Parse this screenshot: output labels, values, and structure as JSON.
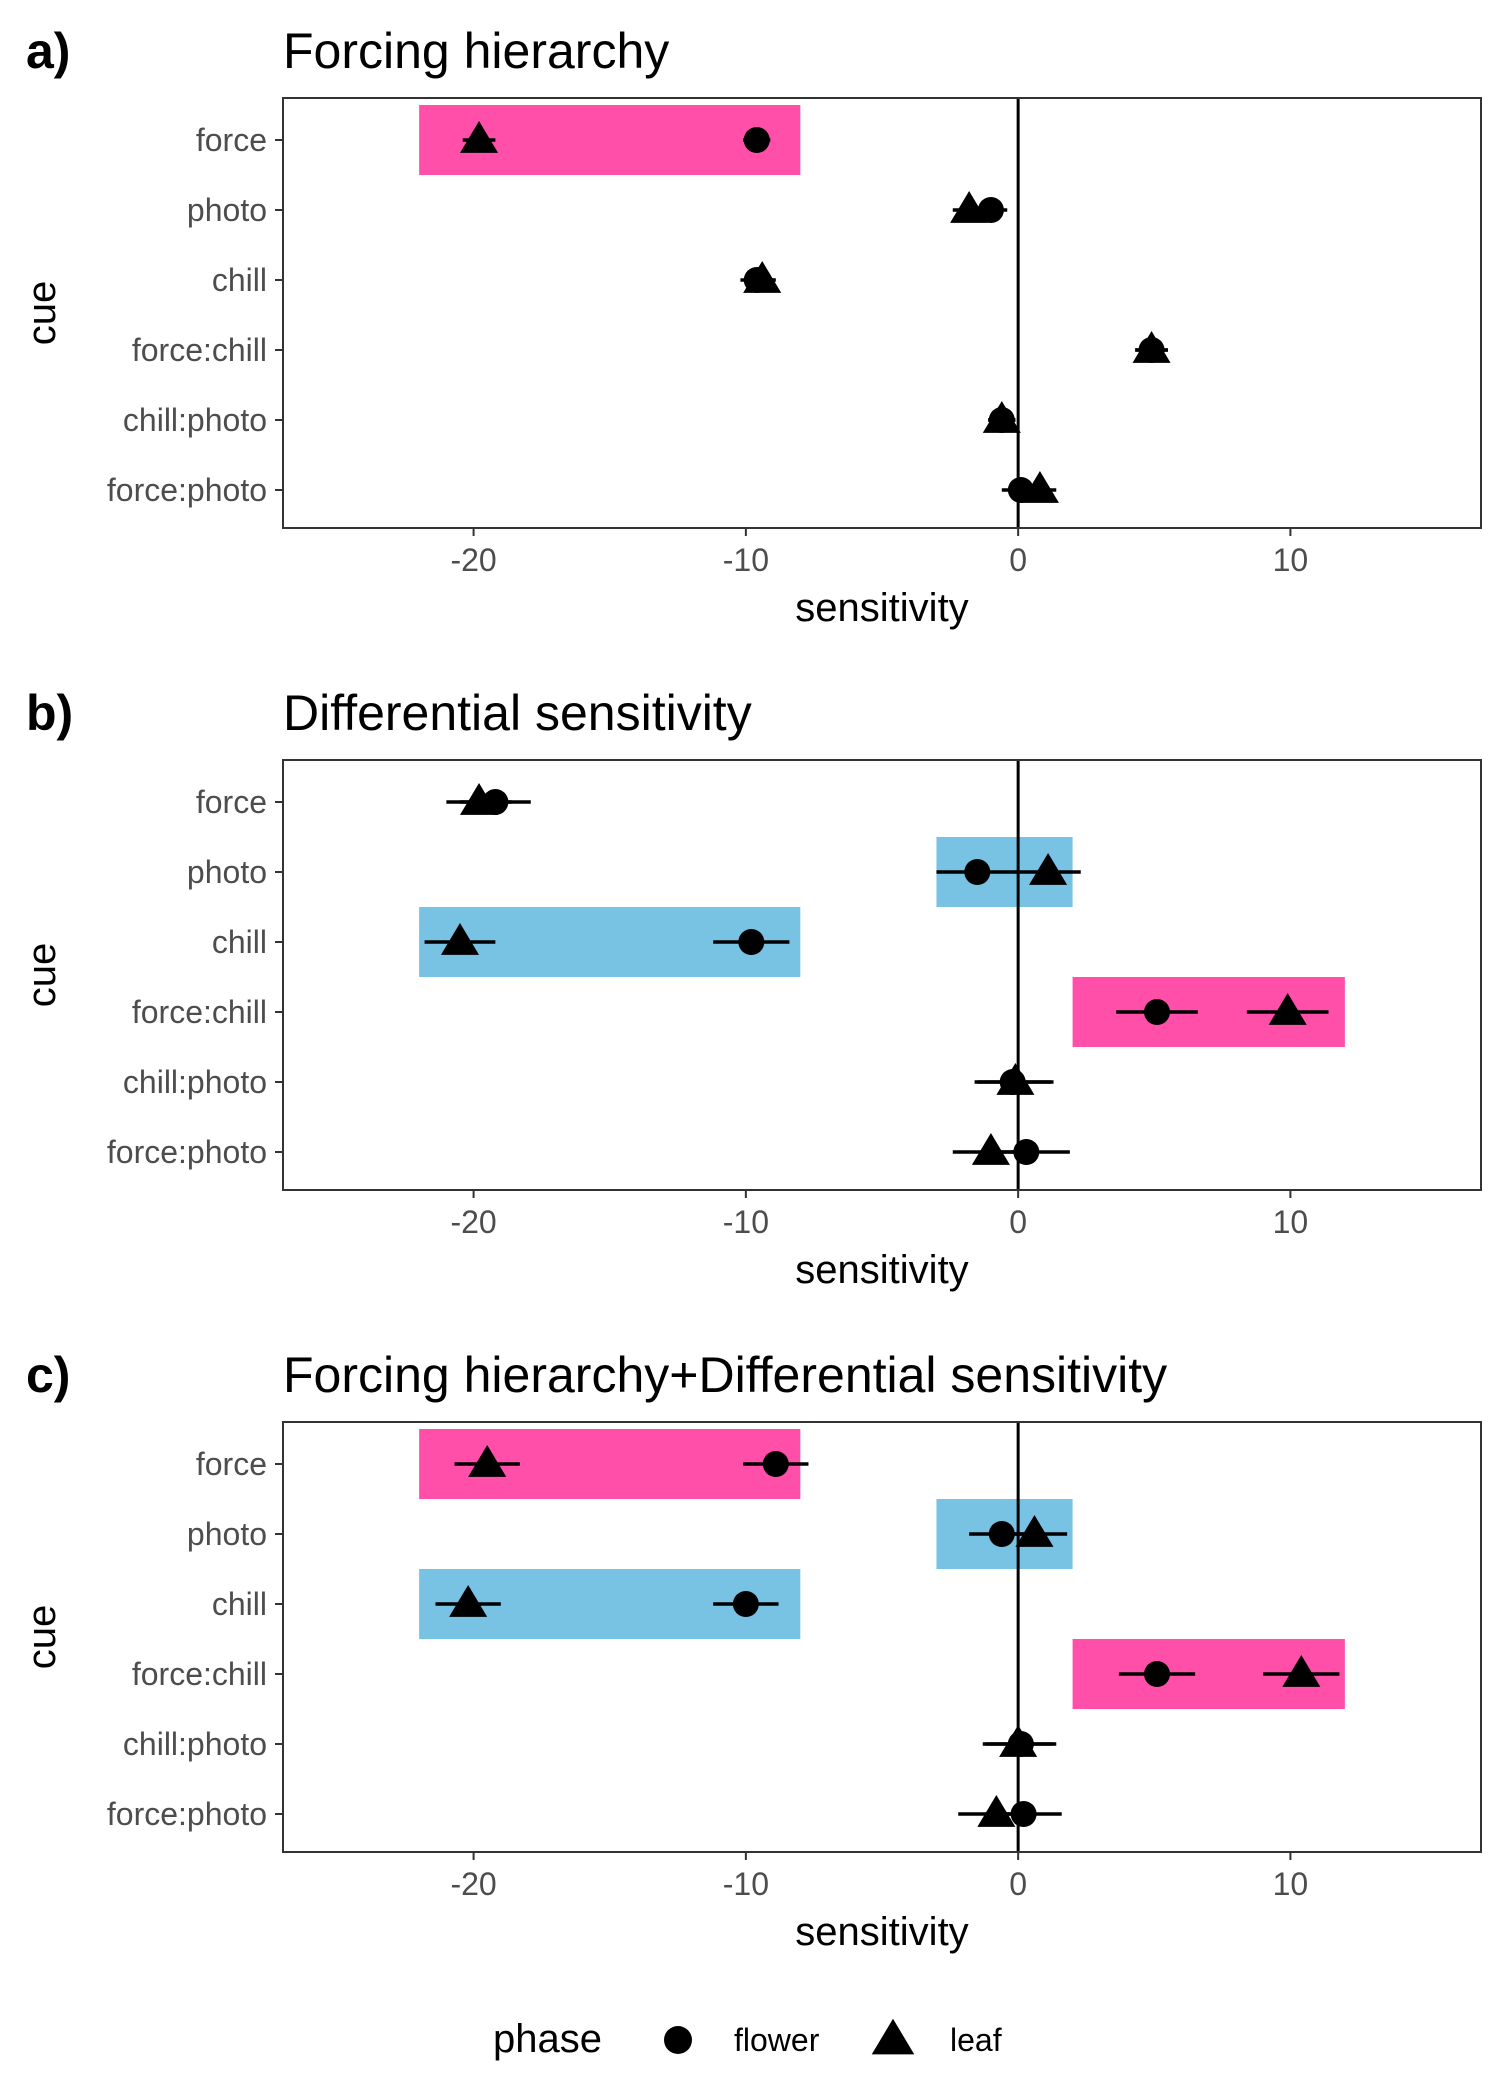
{
  "chart_data": [
    {
      "type": "scatter",
      "panel_letter": "a)",
      "title": "Forcing hierarchy",
      "xlabel": "sensitivity",
      "ylabel": "cue",
      "xlim": [
        -27,
        17
      ],
      "x_ticks": [
        -20,
        -10,
        0,
        10
      ],
      "x_tick_labels": [
        "-20",
        "-10",
        "0",
        "10"
      ],
      "categories": [
        "force",
        "photo",
        "chill",
        "force:chill",
        "chill:photo",
        "force:photo"
      ],
      "zero_line": 0,
      "highlights": [
        {
          "cue": "force",
          "x": [
            -22,
            -8
          ],
          "color": "#ff4fa8"
        }
      ],
      "series": [
        {
          "name": "flower",
          "shape": "circle",
          "values": [
            -9.6,
            -1.0,
            -9.6,
            4.9,
            -0.6,
            0.1
          ],
          "err": [
            0.5,
            0.6,
            0.6,
            0.6,
            0.5,
            0.7
          ]
        },
        {
          "name": "leaf",
          "shape": "triangle",
          "values": [
            -19.8,
            -1.8,
            -9.4,
            4.9,
            -0.6,
            0.8
          ],
          "err": [
            0.6,
            0.6,
            0.5,
            0.6,
            0.5,
            0.6
          ]
        }
      ]
    },
    {
      "type": "scatter",
      "panel_letter": "b)",
      "title": "Differential sensitivity",
      "xlabel": "sensitivity",
      "ylabel": "cue",
      "xlim": [
        -27,
        17
      ],
      "x_ticks": [
        -20,
        -10,
        0,
        10
      ],
      "x_tick_labels": [
        "-20",
        "-10",
        "0",
        "10"
      ],
      "categories": [
        "force",
        "photo",
        "chill",
        "force:chill",
        "chill:photo",
        "force:photo"
      ],
      "zero_line": 0,
      "highlights": [
        {
          "cue": "photo",
          "x": [
            -3,
            2
          ],
          "color": "#78c2e4"
        },
        {
          "cue": "chill",
          "x": [
            -22,
            -8
          ],
          "color": "#78c2e4"
        },
        {
          "cue": "force:chill",
          "x": [
            2,
            12
          ],
          "color": "#ff4fa8"
        }
      ],
      "series": [
        {
          "name": "flower",
          "shape": "circle",
          "values": [
            -19.2,
            -1.5,
            -9.8,
            5.1,
            -0.2,
            0.3
          ],
          "err": [
            1.3,
            1.5,
            1.4,
            1.5,
            1.4,
            1.6
          ]
        },
        {
          "name": "leaf",
          "shape": "triangle",
          "values": [
            -19.8,
            1.1,
            -20.5,
            9.9,
            -0.1,
            -1.0
          ],
          "err": [
            1.2,
            1.2,
            1.3,
            1.5,
            1.4,
            1.4
          ]
        }
      ]
    },
    {
      "type": "scatter",
      "panel_letter": "c)",
      "title": "Forcing hierarchy+Differential sensitivity",
      "xlabel": "sensitivity",
      "ylabel": "cue",
      "xlim": [
        -27,
        17
      ],
      "x_ticks": [
        -20,
        -10,
        0,
        10
      ],
      "x_tick_labels": [
        "-20",
        "-10",
        "0",
        "10"
      ],
      "categories": [
        "force",
        "photo",
        "chill",
        "force:chill",
        "chill:photo",
        "force:photo"
      ],
      "zero_line": 0,
      "highlights": [
        {
          "cue": "force",
          "x": [
            -22,
            -8
          ],
          "color": "#ff4fa8"
        },
        {
          "cue": "photo",
          "x": [
            -3,
            2
          ],
          "color": "#78c2e4"
        },
        {
          "cue": "chill",
          "x": [
            -22,
            -8
          ],
          "color": "#78c2e4"
        },
        {
          "cue": "force:chill",
          "x": [
            2,
            12
          ],
          "color": "#ff4fa8"
        }
      ],
      "series": [
        {
          "name": "flower",
          "shape": "circle",
          "values": [
            -8.9,
            -0.6,
            -10.0,
            5.1,
            0.1,
            0.2
          ],
          "err": [
            1.2,
            1.2,
            1.2,
            1.4,
            1.3,
            1.4
          ]
        },
        {
          "name": "leaf",
          "shape": "triangle",
          "values": [
            -19.5,
            0.6,
            -20.2,
            10.4,
            0.0,
            -0.8
          ],
          "err": [
            1.2,
            1.2,
            1.2,
            1.4,
            1.3,
            1.4
          ]
        }
      ]
    }
  ],
  "legend": {
    "title": "phase",
    "items": [
      {
        "label": "flower",
        "shape": "circle"
      },
      {
        "label": "leaf",
        "shape": "triangle"
      }
    ]
  }
}
